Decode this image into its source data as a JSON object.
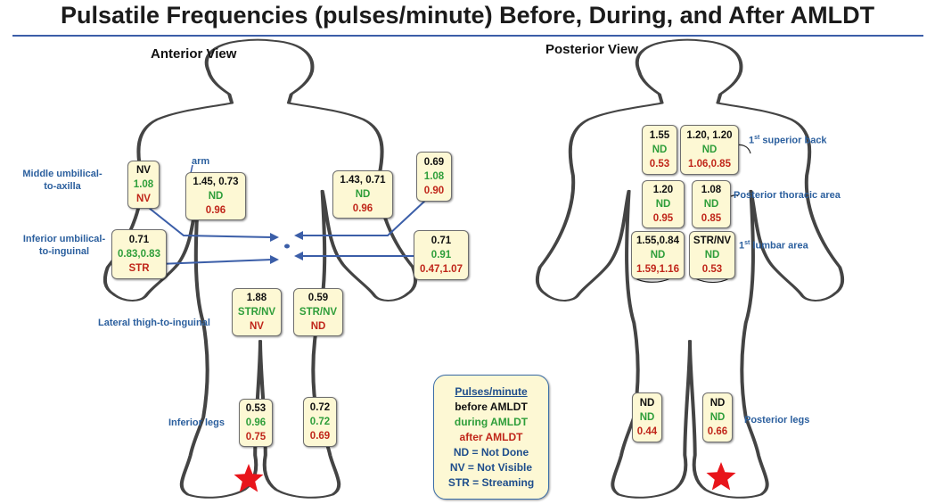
{
  "title": "Pulsatile Frequencies (pulses/minute) Before, During, and After AMLDT",
  "views": {
    "anterior": "Anterior View",
    "posterior": "Posterior View"
  },
  "colors": {
    "before": "#111111",
    "during": "#2e9e3a",
    "after": "#c0261a",
    "label": "#2b5f9e",
    "box_fill": "#fdf8d4",
    "arrow": "#3b5ea8",
    "star": "#e8151b"
  },
  "anterior_boxes": [
    {
      "id": "ant-left-upper",
      "before": "NV",
      "during": "1.08",
      "after": "NV"
    },
    {
      "id": "ant-arm",
      "before": "1.45, 0.73",
      "during": "ND",
      "after": "0.96"
    },
    {
      "id": "ant-right-arm",
      "before": "1.43, 0.71",
      "during": "ND",
      "after": "0.96"
    },
    {
      "id": "ant-right-upper",
      "before": "0.69",
      "during": "1.08",
      "after": "0.90"
    },
    {
      "id": "ant-left-lower",
      "before": "0.71",
      "during": "0.83,0.83",
      "after": "STR"
    },
    {
      "id": "ant-right-lower",
      "before": "0.71",
      "during": "0.91",
      "after": "0.47,1.07"
    },
    {
      "id": "ant-left-thigh",
      "before": "1.88",
      "during": "STR/NV",
      "after": "NV"
    },
    {
      "id": "ant-right-thigh",
      "before": "0.59",
      "during": "STR/NV",
      "after": "ND"
    },
    {
      "id": "ant-left-leg",
      "before": "0.53",
      "during": "0.96",
      "after": "0.75"
    },
    {
      "id": "ant-right-leg",
      "before": "0.72",
      "during": "0.72",
      "after": "0.69"
    }
  ],
  "posterior_boxes": [
    {
      "id": "post-left-back",
      "before": "1.55",
      "during": "ND",
      "after": "0.53"
    },
    {
      "id": "post-right-back",
      "before": "1.20, 1.20",
      "during": "ND",
      "after": "1.06,0.85"
    },
    {
      "id": "post-left-thoracic",
      "before": "1.20",
      "during": "ND",
      "after": "0.95"
    },
    {
      "id": "post-right-thoracic",
      "before": "1.08",
      "during": "ND",
      "after": "0.85"
    },
    {
      "id": "post-left-lumbar",
      "before": "1.55,0.84",
      "during": "ND",
      "after": "1.59,1.16"
    },
    {
      "id": "post-right-lumbar",
      "before": "STR/NV",
      "during": "ND",
      "after": "0.53"
    },
    {
      "id": "post-left-leg",
      "before": "ND",
      "during": "ND",
      "after": "0.44"
    },
    {
      "id": "post-right-leg",
      "before": "ND",
      "during": "ND",
      "after": "0.66"
    }
  ],
  "labels": {
    "middle_umbilical_line1": "Middle umbilical-",
    "middle_umbilical_line2": "to-axilla",
    "arm": "arm",
    "inferior_umbilical_line1": "Inferior umbilical-",
    "inferior_umbilical_line2": "to-inguinal",
    "lateral_thigh": "Lateral thigh-to-inguinal",
    "inferior_legs": "Inferior legs",
    "superior_back_ordinal": "1",
    "superior_back_sup": "st",
    "superior_back_text": " superior back",
    "posterior_thoracic": "Posterior thoracic area",
    "lumbar_ordinal": "1",
    "lumbar_sup": "st",
    "lumbar_text": " lumbar area",
    "posterior_legs": "Posterior legs"
  },
  "legend": {
    "heading": "Pulses/minute",
    "before": "before AMLDT",
    "during": "during AMLDT",
    "after": "after AMLDT",
    "nd": "ND = Not Done",
    "nv": "NV = Not Visible",
    "str": "STR = Streaming"
  }
}
